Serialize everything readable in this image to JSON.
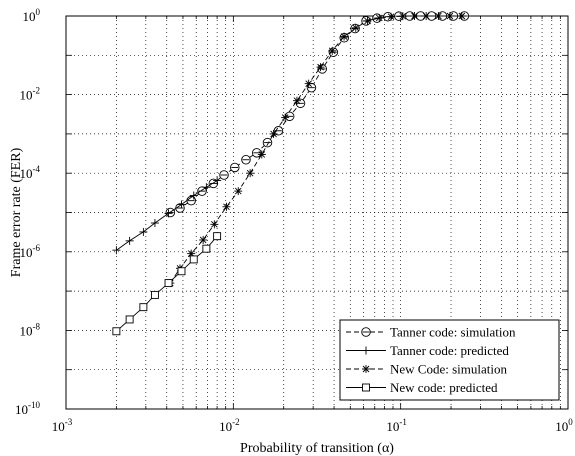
{
  "chart_data": {
    "type": "line",
    "title": "",
    "xlabel": "Probability of transition (α)",
    "ylabel": "Frame error rate (FER)",
    "xscale": "log",
    "yscale": "log",
    "xlim": [
      0.001,
      1
    ],
    "ylim": [
      1e-10,
      1
    ],
    "grid": true,
    "legend_position": "bottom-right",
    "x_ticks": [
      {
        "base": "10",
        "exp": "-3",
        "value": 0.001
      },
      {
        "base": "10",
        "exp": "-2",
        "value": 0.01
      },
      {
        "base": "10",
        "exp": "-1",
        "value": 0.1
      },
      {
        "base": "10",
        "exp": "0",
        "value": 1
      }
    ],
    "y_ticks": [
      {
        "base": "10",
        "exp": "0",
        "value": 1
      },
      {
        "base": "10",
        "exp": "-2",
        "value": 0.01
      },
      {
        "base": "10",
        "exp": "-4",
        "value": 0.0001
      },
      {
        "base": "10",
        "exp": "-6",
        "value": 1e-06
      },
      {
        "base": "10",
        "exp": "-8",
        "value": 1e-08
      },
      {
        "base": "10",
        "exp": "-10",
        "value": 1e-10
      }
    ],
    "series": [
      {
        "name": "Tanner code: simulation",
        "line": "dashed",
        "marker": "circle-bar",
        "x": [
          0.0042,
          0.0048,
          0.0056,
          0.0065,
          0.0076,
          0.0088,
          0.0102,
          0.0119,
          0.0138,
          0.016,
          0.0186,
          0.0217,
          0.0252,
          0.0293,
          0.034,
          0.0396,
          0.046,
          0.0534,
          0.0621,
          0.0722,
          0.0839,
          0.0975,
          0.1133,
          0.1317,
          0.153,
          0.1778,
          0.2067,
          0.2402
        ],
        "values": [
          1e-05,
          1.3e-05,
          2e-05,
          3.5e-05,
          5.5e-05,
          9e-05,
          0.00014,
          0.00022,
          0.00033,
          0.0006,
          0.0012,
          0.0028,
          0.006,
          0.015,
          0.045,
          0.12,
          0.28,
          0.48,
          0.75,
          0.88,
          0.96,
          0.99,
          1.0,
          1.0,
          1.0,
          1.0,
          1.0,
          1.0
        ]
      },
      {
        "name": "Tanner code: predicted",
        "line": "solid",
        "marker": "plus",
        "x": [
          0.002,
          0.0024,
          0.0029,
          0.0034,
          0.0041,
          0.0049,
          0.0058,
          0.0069,
          0.008
        ],
        "values": [
          1.1e-06,
          1.9e-06,
          3.2e-06,
          5.4e-06,
          9.5e-06,
          1.6e-05,
          2.7e-05,
          4.4e-05,
          6.5e-05
        ]
      },
      {
        "name": "New Code: simulation",
        "line": "dashed",
        "marker": "asterisk",
        "x": [
          0.0042,
          0.0048,
          0.0056,
          0.0066,
          0.0077,
          0.0091,
          0.0107,
          0.0126,
          0.0148,
          0.0174,
          0.0204,
          0.024,
          0.0282,
          0.0332,
          0.039,
          0.0459,
          0.0539,
          0.0634,
          0.0745,
          0.0876,
          0.103,
          0.121,
          0.142,
          0.168,
          0.197,
          0.232
        ],
        "values": [
          1.6e-07,
          3.8e-07,
          9e-07,
          2e-06,
          5e-06,
          1.4e-05,
          3.5e-05,
          0.0001,
          0.0003,
          0.001,
          0.0026,
          0.007,
          0.019,
          0.05,
          0.13,
          0.3,
          0.5,
          0.75,
          0.89,
          0.96,
          0.99,
          1.0,
          1.0,
          1.0,
          1.0,
          1.0
        ]
      },
      {
        "name": "New code: predicted",
        "line": "solid",
        "marker": "square",
        "x": [
          0.002,
          0.0024,
          0.0029,
          0.0034,
          0.0041,
          0.0049,
          0.0058,
          0.0069,
          0.008
        ],
        "values": [
          9.5e-09,
          1.9e-08,
          3.9e-08,
          8e-08,
          1.6e-07,
          3.2e-07,
          6.4e-07,
          1.2e-06,
          2.5e-06
        ]
      }
    ]
  }
}
